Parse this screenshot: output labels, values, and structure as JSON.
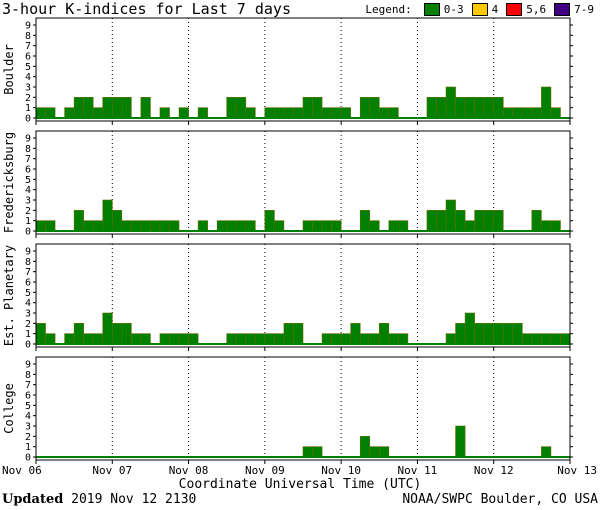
{
  "title": "3-hour K-indices for Last 7 days",
  "legend": {
    "label": "Legend:",
    "items": [
      {
        "label": "0-3",
        "color": "#008000"
      },
      {
        "label": "4",
        "color": "#ffc800"
      },
      {
        "label": "5,6",
        "color": "#ff0000"
      },
      {
        "label": "7-9",
        "color": "#400080"
      }
    ]
  },
  "footer": {
    "updated_label": "Updated",
    "updated_value": "2019 Nov 12 2130",
    "source": "NOAA/SWPC Boulder, CO USA"
  },
  "chart_data": {
    "type": "bar",
    "xlabel": "Coordinate Universal Time (UTC)",
    "x_ticks": [
      "Nov 06",
      "Nov 07",
      "Nov 08",
      "Nov 09",
      "Nov 10",
      "Nov 11",
      "Nov 12",
      "Nov 13"
    ],
    "ylim": [
      0,
      9
    ],
    "y_ticks": [
      0,
      1,
      2,
      3,
      4,
      5,
      6,
      7,
      8,
      9
    ],
    "interval_hours": 3,
    "panels": [
      {
        "name": "Boulder",
        "values": [
          1,
          1,
          0,
          1,
          2,
          2,
          1,
          2,
          2,
          2,
          0,
          2,
          0,
          1,
          0,
          1,
          0,
          1,
          0,
          0,
          2,
          2,
          1,
          0,
          1,
          1,
          1,
          1,
          2,
          2,
          1,
          1,
          1,
          0,
          2,
          2,
          1,
          1,
          0,
          0,
          0,
          2,
          2,
          3,
          2,
          2,
          2,
          2,
          2,
          1,
          1,
          1,
          1,
          3,
          1,
          0
        ]
      },
      {
        "name": "Fredericksburg",
        "values": [
          1,
          1,
          0,
          0,
          2,
          1,
          1,
          3,
          2,
          1,
          1,
          1,
          1,
          1,
          1,
          0,
          0,
          1,
          0,
          1,
          1,
          1,
          1,
          0,
          2,
          1,
          0,
          0,
          1,
          1,
          1,
          1,
          0,
          0,
          2,
          1,
          0,
          1,
          1,
          0,
          0,
          2,
          2,
          3,
          2,
          1,
          2,
          2,
          2,
          0,
          0,
          0,
          2,
          1,
          1,
          0
        ]
      },
      {
        "name": "Est. Planetary",
        "values": [
          2,
          1,
          0,
          1,
          2,
          1,
          1,
          3,
          2,
          2,
          1,
          1,
          0,
          1,
          1,
          1,
          1,
          0,
          0,
          0,
          1,
          1,
          1,
          1,
          1,
          1,
          2,
          2,
          0,
          0,
          1,
          1,
          1,
          2,
          1,
          1,
          2,
          1,
          1,
          0,
          0,
          0,
          0,
          1,
          2,
          3,
          2,
          2,
          2,
          2,
          2,
          1,
          1,
          1,
          1,
          1
        ]
      },
      {
        "name": "College",
        "values": [
          0,
          0,
          0,
          0,
          0,
          0,
          0,
          0,
          0,
          0,
          0,
          0,
          0,
          0,
          0,
          0,
          0,
          0,
          0,
          0,
          0,
          0,
          0,
          0,
          0,
          0,
          0,
          0,
          1,
          1,
          0,
          0,
          0,
          0,
          2,
          1,
          1,
          0,
          0,
          0,
          0,
          0,
          0,
          0,
          3,
          0,
          0,
          0,
          0,
          0,
          0,
          0,
          0,
          1,
          0,
          0
        ]
      }
    ]
  }
}
